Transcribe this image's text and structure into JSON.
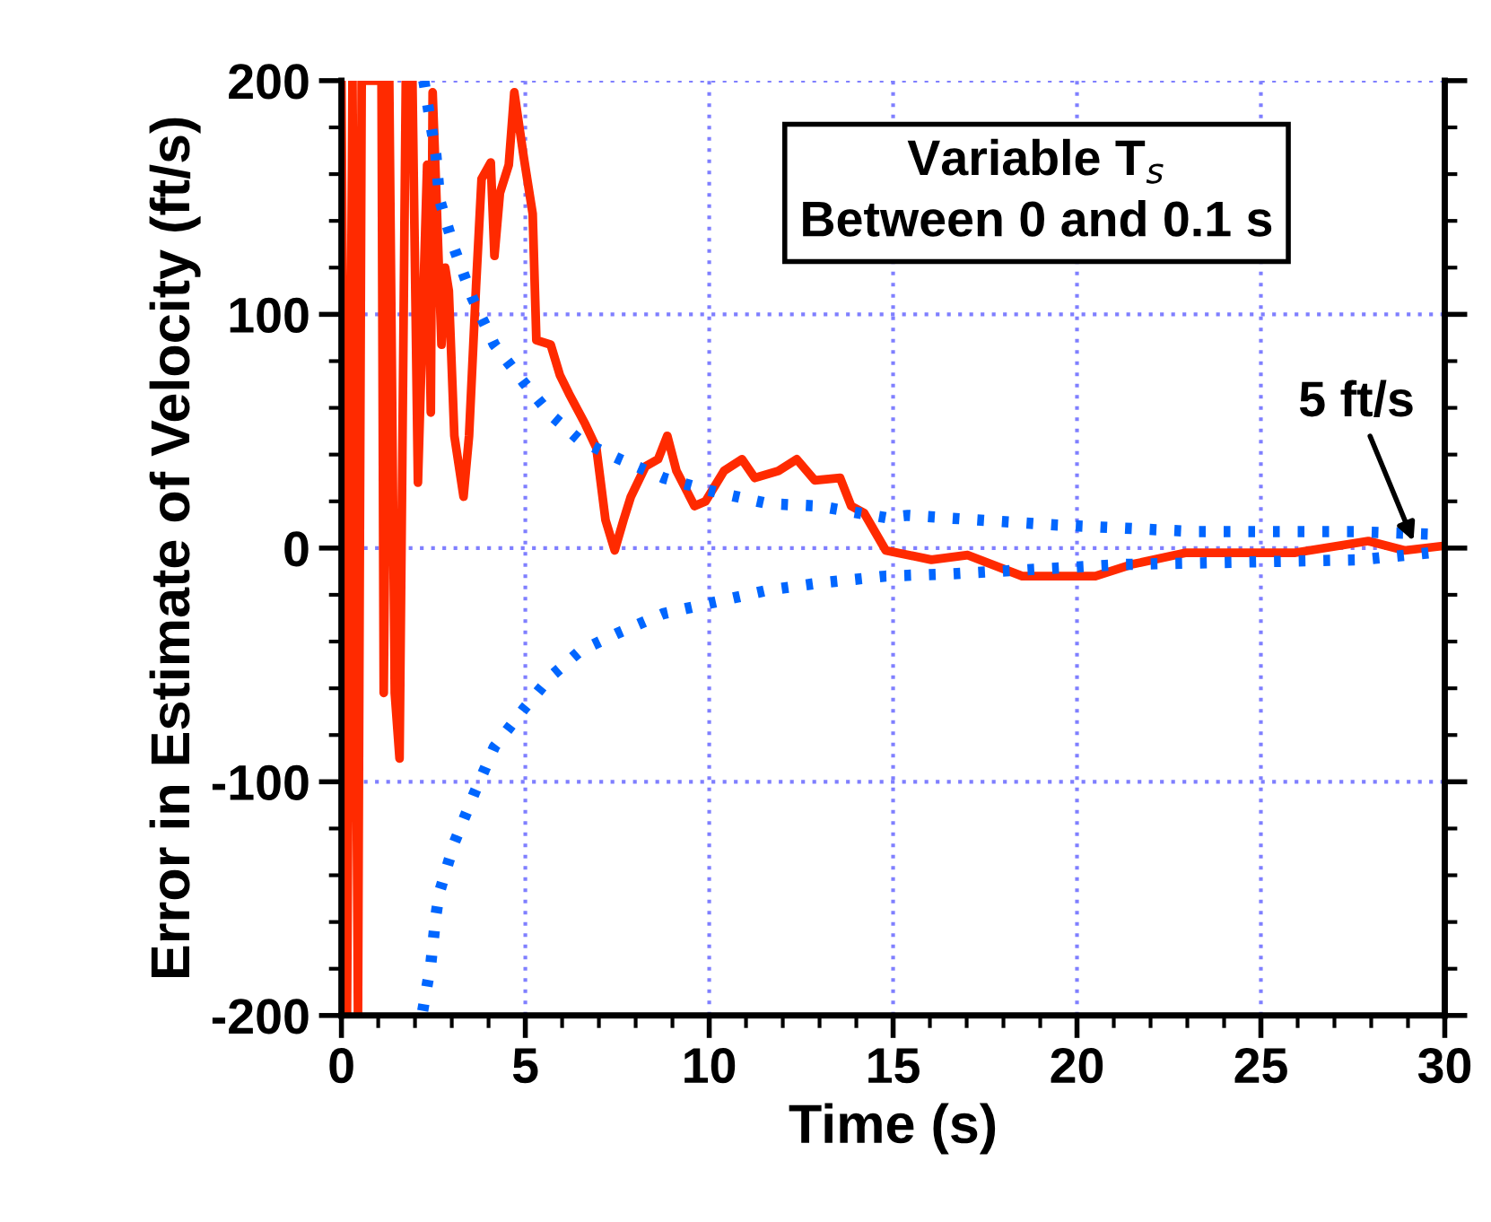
{
  "chart_data": {
    "type": "line",
    "xlabel": "Time (s)",
    "ylabel": "Error in Estimate of Velocity (ft/s)",
    "xlim": [
      0,
      30
    ],
    "xticks": [
      0,
      5,
      10,
      15,
      20,
      25,
      30
    ],
    "ylim": [
      -200,
      200
    ],
    "yticks": [
      -200,
      -100,
      0,
      100,
      200
    ],
    "grid": true,
    "legend": false,
    "annotations": [
      "Variable T$_{s}$\nBetween 0 and 0.1 s",
      {
        "text": "5 ft/s",
        "x": 29.2,
        "y": 1
      }
    ],
    "series": [
      {
        "color": "#ff2a00",
        "line_style": "solid",
        "x": [
          0,
          0.15,
          0.3,
          0.45,
          0.55,
          1.09,
          1.15,
          1.3,
          1.45,
          1.58,
          1.75,
          1.93,
          2.08,
          2.33,
          2.43,
          2.48,
          2.57,
          2.72,
          2.82,
          2.92,
          3.07,
          3.32,
          3.47,
          3.66,
          3.81,
          4.06,
          4.16,
          4.31,
          4.55,
          4.7,
          4.95,
          5.2,
          5.3,
          5.69,
          5.94,
          6.19,
          6.63,
          6.93,
          7.18,
          7.43,
          7.67,
          7.87,
          8.27,
          8.61,
          8.86,
          9.11,
          9.6,
          9.9,
          10.4,
          10.89,
          11.24,
          11.88,
          12.38,
          12.87,
          13.56,
          13.86,
          14.21,
          14.8,
          16.04,
          17.03,
          18.51,
          20.5,
          21.49,
          22.97,
          25.94,
          27.92,
          28.91,
          30
        ],
        "values": [
          200,
          -200,
          200,
          -200,
          200,
          200,
          -62,
          200,
          -62,
          -90,
          200,
          200,
          28,
          164,
          58,
          195,
          156,
          87,
          120,
          110,
          48,
          22,
          48,
          112,
          158,
          165,
          125,
          152,
          164,
          195,
          168,
          143,
          89,
          87,
          74,
          66,
          53,
          43,
          12,
          -1,
          12,
          22,
          35,
          38,
          48,
          33,
          18,
          20,
          33,
          38,
          30,
          33,
          38,
          29,
          30,
          18,
          15,
          -1,
          -5,
          -3,
          -12,
          -12,
          -7,
          -2,
          -2,
          3,
          -1,
          1
        ]
      },
      {
        "color": "#0066ff",
        "line_style": "dotted",
        "x": [
          2.24,
          2.57,
          2.67,
          3.07,
          3.56,
          4.16,
          4.95,
          5.69,
          6.49,
          7.57,
          8.76,
          9.9,
          11.6,
          12.97,
          14.8,
          15.4,
          19.3,
          23.3,
          27.6,
          29.6
        ],
        "values": [
          200,
          168,
          149,
          128,
          107,
          87,
          71,
          57,
          46,
          38,
          30,
          25,
          19,
          18,
          13,
          14,
          10,
          7,
          7,
          6
        ]
      },
      {
        "color": "#0066ff",
        "line_style": "dotted",
        "x": [
          2.21,
          2.43,
          2.57,
          2.67,
          3.07,
          3.61,
          4.16,
          4.95,
          5.69,
          6.49,
          7.57,
          8.76,
          9.9,
          11.6,
          12.97,
          14.8,
          16.6,
          21.3,
          27.7,
          29.6
        ],
        "values": [
          -198,
          -178,
          -157,
          -147,
          -126,
          -105,
          -85,
          -69,
          -55,
          -44,
          -36,
          -28,
          -24,
          -18,
          -15,
          -12,
          -11,
          -7,
          -5,
          -2
        ]
      }
    ]
  }
}
